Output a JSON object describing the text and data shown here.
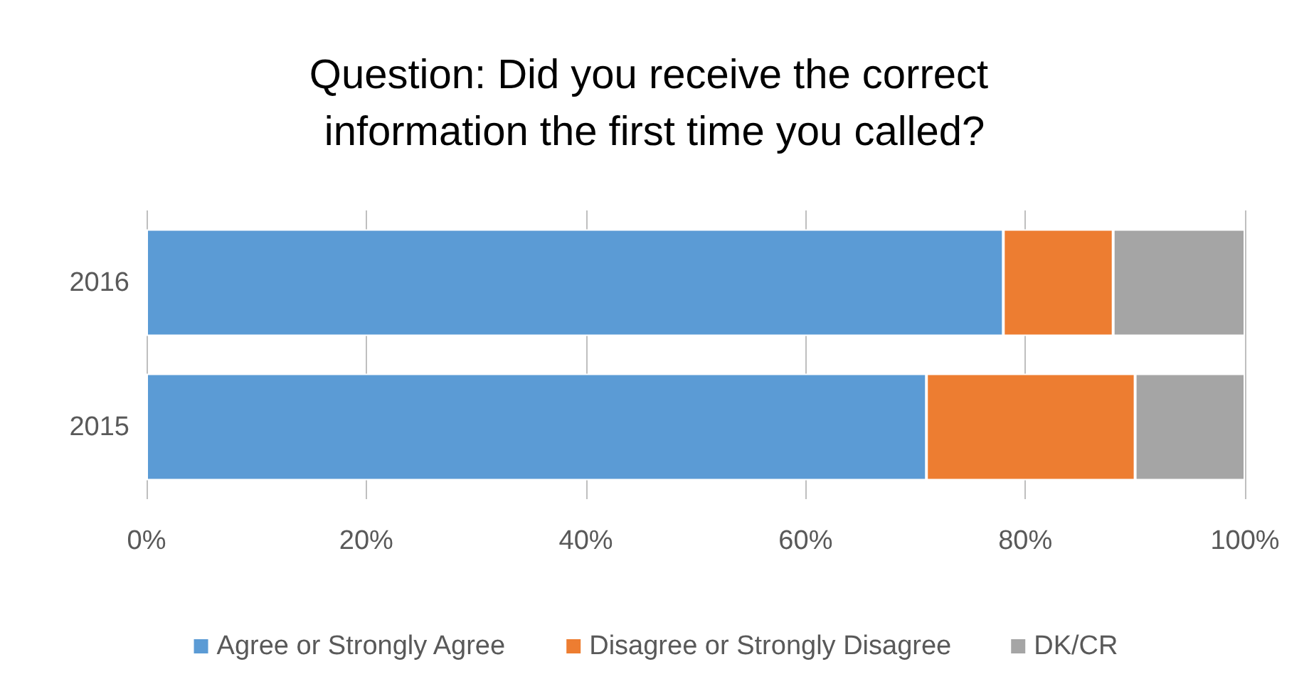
{
  "chart_data": {
    "type": "bar",
    "orientation": "horizontal",
    "stacked": true,
    "title": "Question: Did you receive the correct information the first time you called?",
    "categories": [
      "2016",
      "2015"
    ],
    "series": [
      {
        "name": "Agree or Strongly Agree",
        "color": "#5b9bd5",
        "values": [
          78,
          71
        ]
      },
      {
        "name": "Disagree or Strongly Disagree",
        "color": "#ed7d31",
        "values": [
          10,
          19
        ]
      },
      {
        "name": "DK/CR",
        "color": "#a5a5a5",
        "values": [
          12,
          10
        ]
      }
    ],
    "xlim": [
      0,
      100
    ],
    "xticks": [
      {
        "value": 0,
        "label": "0%"
      },
      {
        "value": 20,
        "label": "20%"
      },
      {
        "value": 40,
        "label": "40%"
      },
      {
        "value": 60,
        "label": "60%"
      },
      {
        "value": 80,
        "label": "80%"
      },
      {
        "value": 100,
        "label": "100%"
      }
    ],
    "grid": "x",
    "legend": "bottom"
  }
}
